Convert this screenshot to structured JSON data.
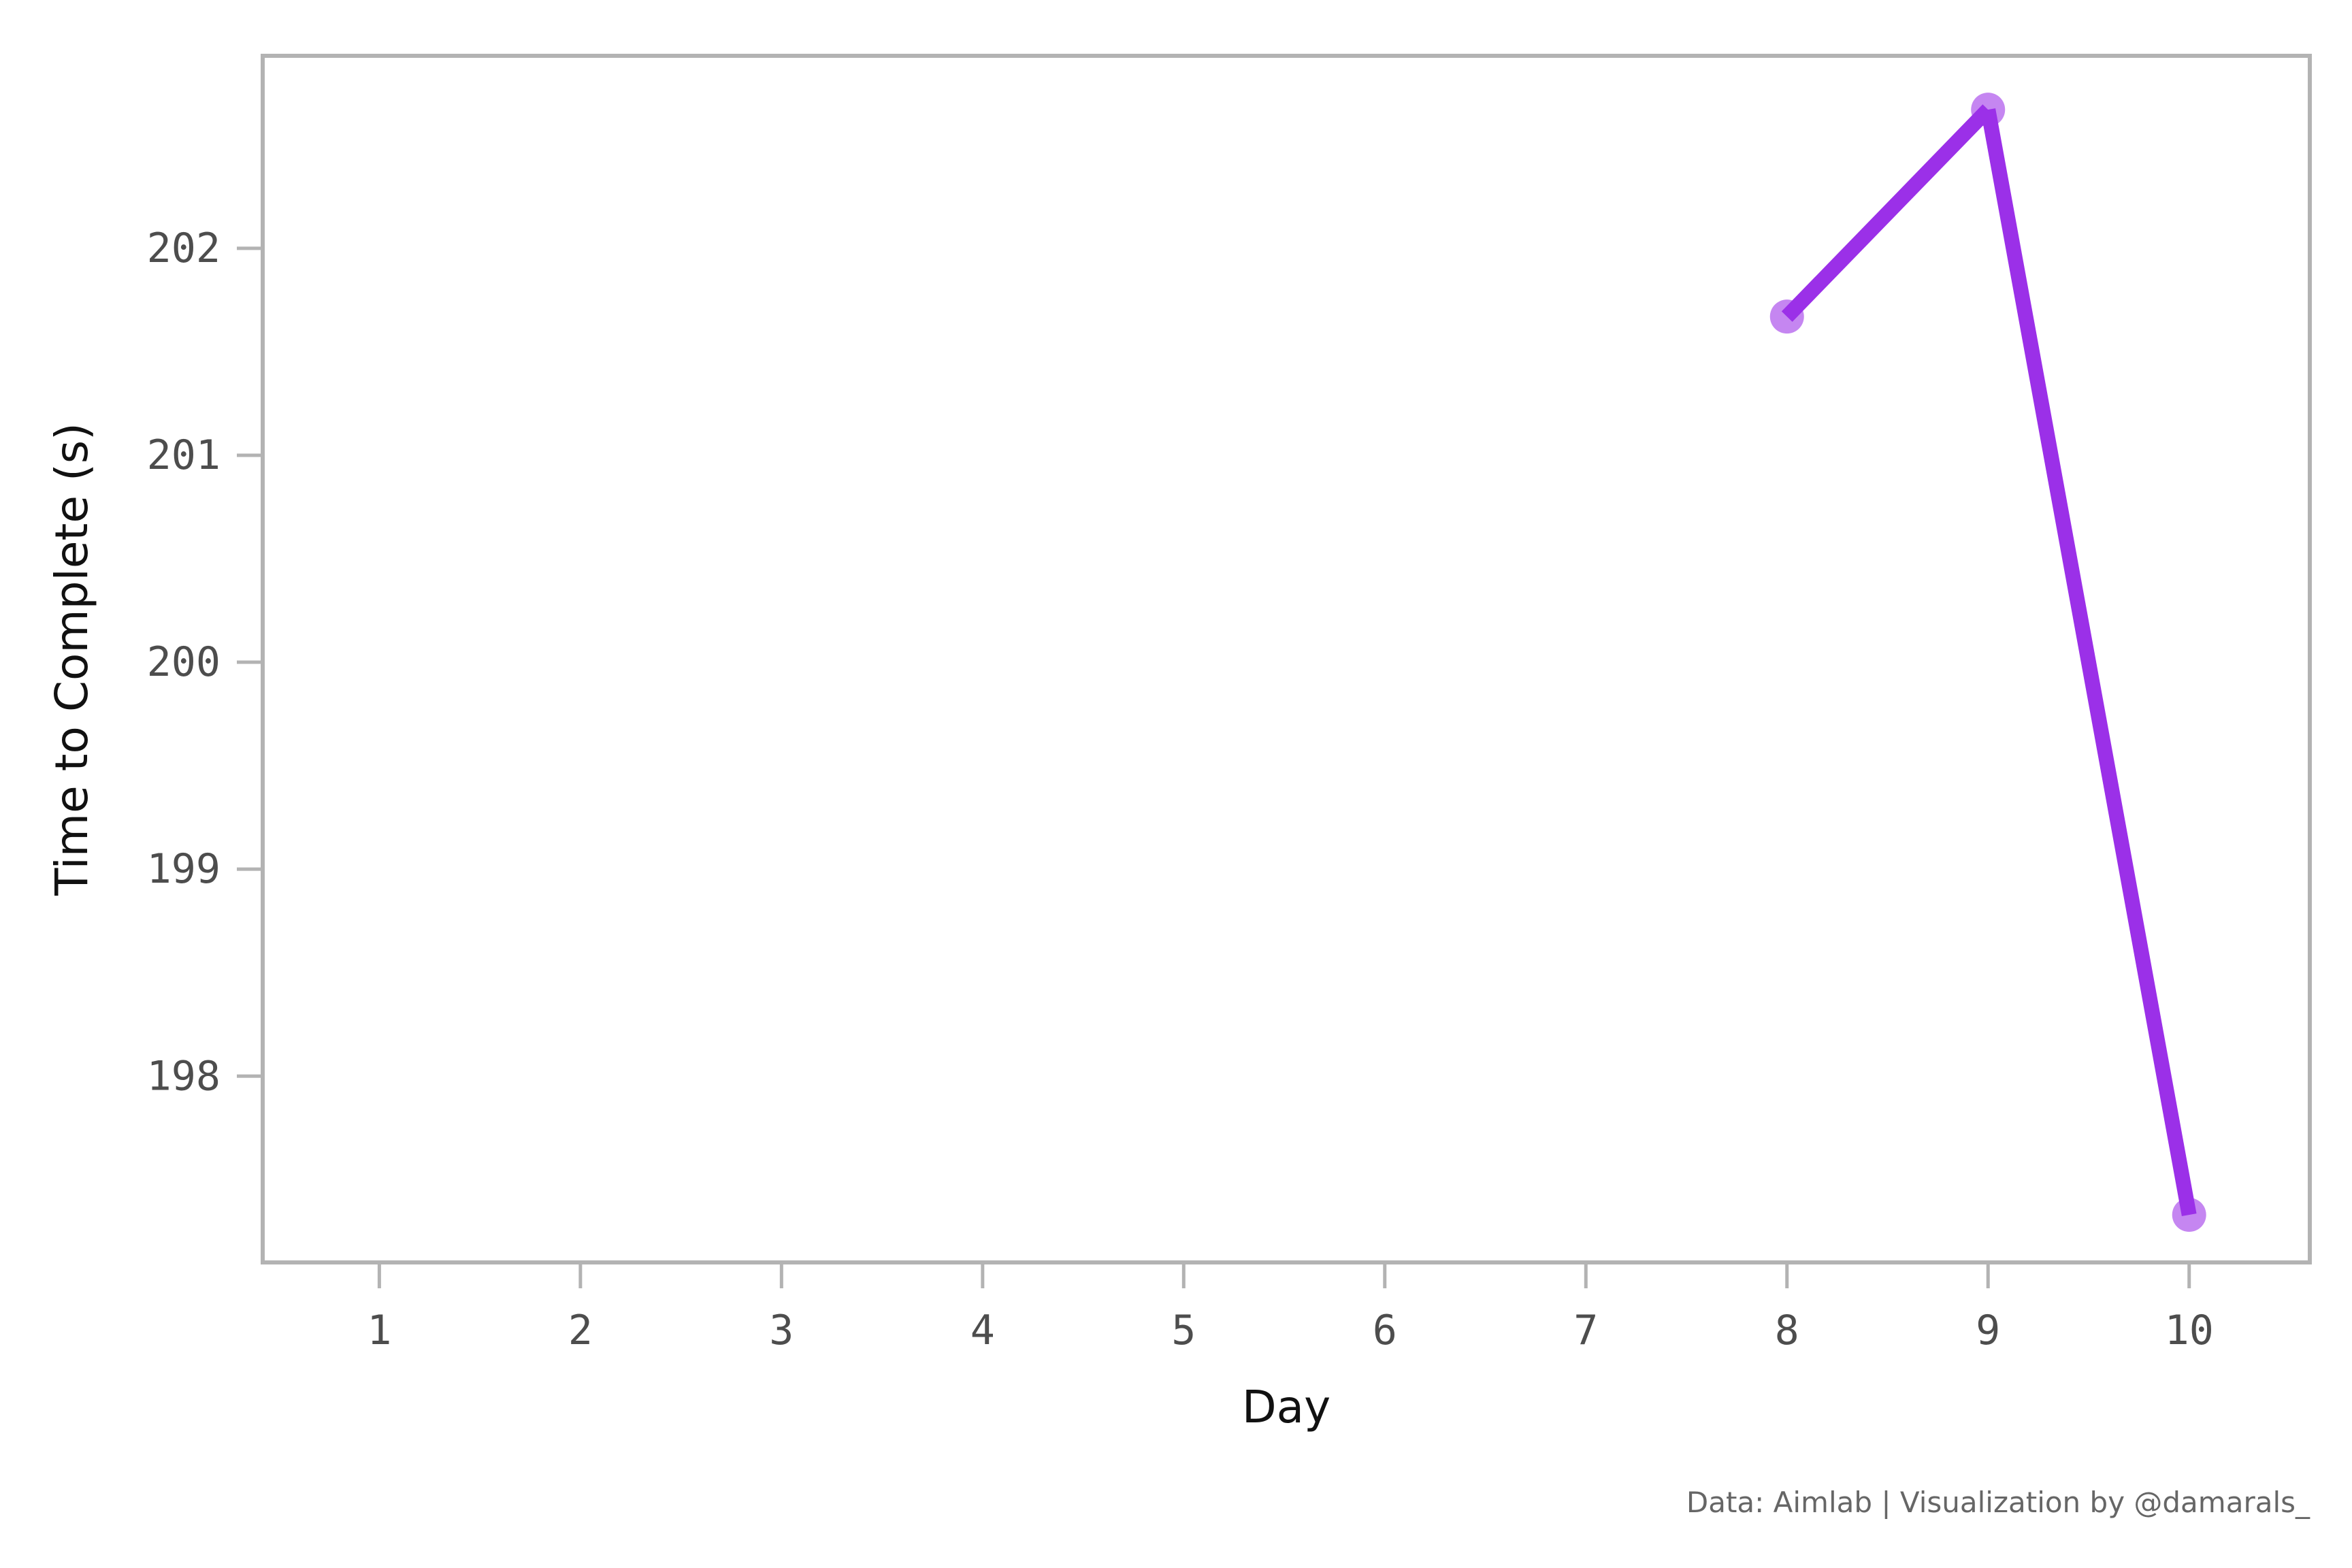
{
  "chart_data": {
    "type": "line",
    "xlabel": "Day",
    "ylabel": "Time to Complete (s)",
    "caption": "Data: Aimlab | Visualization by @damarals_",
    "x_ticks": [
      1,
      2,
      3,
      4,
      5,
      6,
      7,
      8,
      9,
      10
    ],
    "y_ticks": [
      198,
      199,
      200,
      201,
      202
    ],
    "xlim": [
      0.42,
      10.6
    ],
    "ylim": [
      197.1,
      202.93
    ],
    "grid": false,
    "series": [
      {
        "x": [
          8,
          9,
          10
        ],
        "y": [
          201.67,
          202.67,
          197.33
        ],
        "color": "#9b30e8",
        "marker_color": "#c27ff0"
      }
    ],
    "colors": {
      "frame": "#b3b3b3",
      "line": "#9b30e8",
      "marker": "#c27ff0"
    }
  }
}
